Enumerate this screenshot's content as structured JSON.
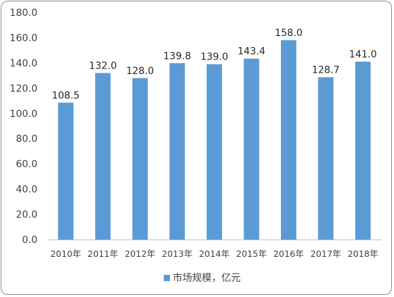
{
  "chart_data": {
    "type": "bar",
    "categories": [
      "2010年",
      "2011年",
      "2012年",
      "2013年",
      "2014年",
      "2015年",
      "2016年",
      "2017年",
      "2018年"
    ],
    "series": [
      {
        "name": "市场规模，亿元",
        "values": [
          108.5,
          132.0,
          128.0,
          139.8,
          139.0,
          143.4,
          158.0,
          128.7,
          141.0
        ],
        "labels": [
          "108.5",
          "132.0",
          "128.0",
          "139.8",
          "139.0",
          "143.4",
          "158.0",
          "128.7",
          "141.0"
        ],
        "color": "#5b9bd5"
      }
    ],
    "ylim": [
      0,
      180
    ],
    "yticks": [
      "0.0",
      "20.0",
      "40.0",
      "60.0",
      "80.0",
      "100.0",
      "120.0",
      "140.0",
      "160.0",
      "180.0"
    ],
    "title": "",
    "xlabel": "",
    "ylabel": "",
    "grid": false,
    "legend": "bottom"
  }
}
